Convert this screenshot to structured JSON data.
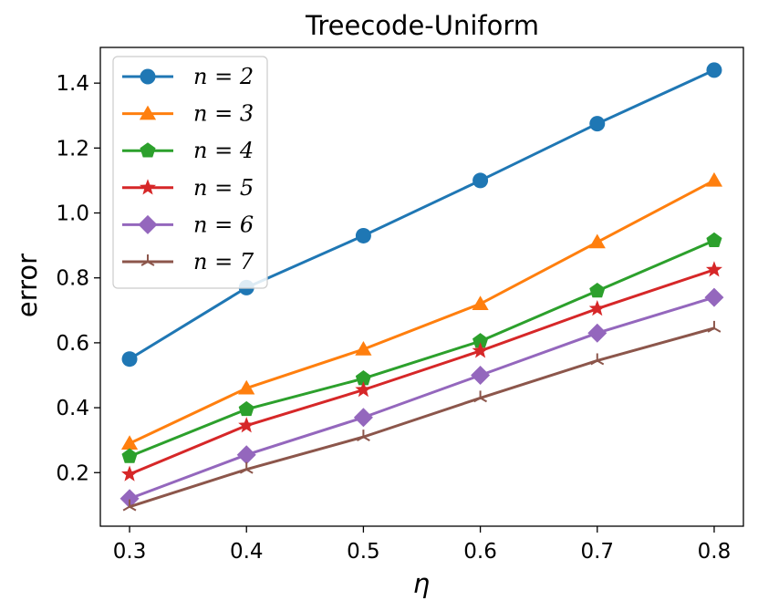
{
  "chart_data": {
    "type": "line",
    "title": "Treecode-Uniform",
    "xlabel": "η",
    "ylabel": "error",
    "x": [
      0.3,
      0.4,
      0.5,
      0.6,
      0.7,
      0.8
    ],
    "x_tick_labels": [
      "0.3",
      "0.4",
      "0.5",
      "0.6",
      "0.7",
      "0.8"
    ],
    "y_tick_labels": [
      "0.2",
      "0.4",
      "0.6",
      "0.8",
      "1.0",
      "1.2",
      "1.4"
    ],
    "y_ticks": [
      0.2,
      0.4,
      0.6,
      0.8,
      1.0,
      1.2,
      1.4
    ],
    "xlim": [
      0.275,
      0.825
    ],
    "ylim": [
      0.035,
      1.51
    ],
    "grid": false,
    "legend_position": "top-left",
    "series": [
      {
        "name": "n = 2",
        "color": "#1f77b4",
        "marker": "circle",
        "values": [
          0.55,
          0.77,
          0.93,
          1.1,
          1.275,
          1.44
        ]
      },
      {
        "name": "n = 3",
        "color": "#ff7f0e",
        "marker": "triangle",
        "values": [
          0.29,
          0.46,
          0.58,
          0.72,
          0.91,
          1.1
        ]
      },
      {
        "name": "n = 4",
        "color": "#2ca02c",
        "marker": "pentagon",
        "values": [
          0.25,
          0.395,
          0.49,
          0.605,
          0.76,
          0.915
        ]
      },
      {
        "name": "n = 5",
        "color": "#d62728",
        "marker": "star",
        "values": [
          0.195,
          0.345,
          0.455,
          0.575,
          0.705,
          0.825
        ]
      },
      {
        "name": "n = 6",
        "color": "#9467bd",
        "marker": "diamond",
        "values": [
          0.12,
          0.255,
          0.37,
          0.5,
          0.63,
          0.74
        ]
      },
      {
        "name": "n = 7",
        "color": "#8c564b",
        "marker": "tri-down",
        "values": [
          0.095,
          0.21,
          0.31,
          0.43,
          0.545,
          0.645
        ]
      }
    ]
  }
}
